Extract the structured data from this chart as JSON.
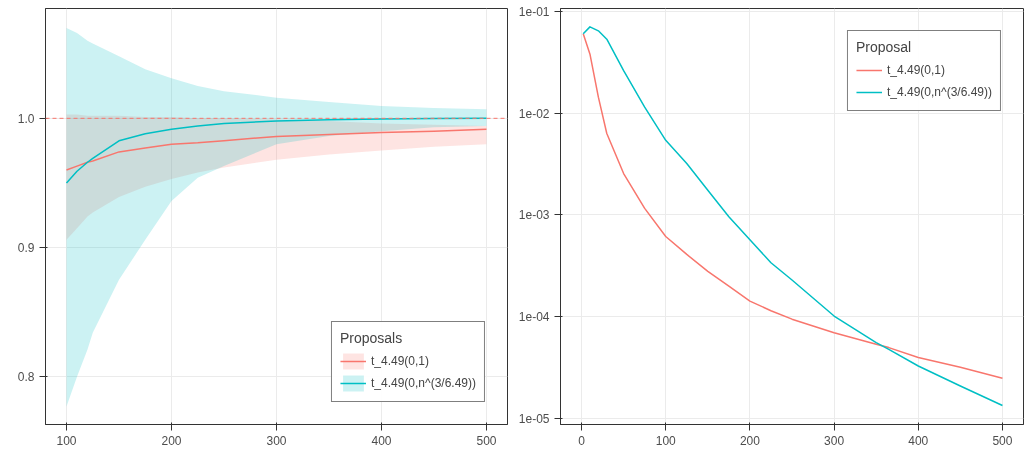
{
  "chart_data": [
    {
      "type": "line",
      "legend_title": "Proposals",
      "legend": "bottom right",
      "grid": true,
      "x": [
        100,
        110,
        120,
        125,
        150,
        175,
        200,
        225,
        250,
        300,
        350,
        400,
        450,
        500
      ],
      "xlim": [
        80,
        520
      ],
      "xticks": [
        100,
        200,
        300,
        400,
        500
      ],
      "ylim": [
        0.763,
        1.085
      ],
      "yticks": [
        {
          "value": 0.8,
          "label": "0.8"
        },
        {
          "value": 0.9,
          "label": "0.9"
        },
        {
          "value": 1.0,
          "label": "1.0"
        }
      ],
      "ref_lines": [
        {
          "axis": "y",
          "value": 1.0,
          "label": null,
          "color": "#f8766d",
          "line_style": "dashed"
        }
      ],
      "series": [
        {
          "name": "t_4.49(0,1)",
          "color": "#f8766d",
          "values": [
            0.96,
            0.963,
            0.966,
            0.967,
            0.974,
            0.977,
            0.98,
            0.981,
            0.9826,
            0.986,
            0.9875,
            0.989,
            0.99,
            0.9915
          ],
          "lower": [
            0.906,
            0.915,
            0.924,
            0.927,
            0.939,
            0.947,
            0.953,
            0.958,
            0.962,
            0.968,
            0.972,
            0.975,
            0.978,
            0.98
          ],
          "upper": [
            1.003,
            1.003,
            1.002,
            1.002,
            1.002,
            1.001,
            1.001,
            1.0,
            1.0,
            0.999,
            0.998,
            0.996,
            0.995,
            0.994
          ]
        },
        {
          "name": "t_4.49(0,n^(3/6.49))",
          "color": "#00bfc4",
          "values": [
            0.95,
            0.959,
            0.966,
            0.969,
            0.9826,
            0.988,
            0.9915,
            0.994,
            0.9959,
            0.998,
            0.9988,
            0.9995,
            0.9998,
            1.0
          ],
          "lower": [
            0.777,
            0.8,
            0.821,
            0.834,
            0.875,
            0.906,
            0.936,
            0.954,
            0.963,
            0.98,
            0.9864,
            0.99,
            0.993,
            0.994
          ],
          "upper": [
            1.07,
            1.066,
            1.06,
            1.058,
            1.048,
            1.038,
            1.031,
            1.025,
            1.021,
            1.016,
            1.0126,
            1.0095,
            1.008,
            1.007
          ]
        }
      ]
    },
    {
      "type": "line",
      "legend_title": "Proposal",
      "legend": "top right",
      "grid": true,
      "log": "y",
      "x": [
        2,
        10,
        20,
        30,
        50,
        75,
        100,
        125,
        150,
        175,
        200,
        225,
        250,
        300,
        350,
        365,
        400,
        450,
        500
      ],
      "xlim": [
        -25,
        525
      ],
      "xticks": [
        0,
        100,
        200,
        300,
        400,
        500
      ],
      "ylim": [
        8.8e-06,
        0.106
      ],
      "yticks": [
        {
          "value": 1e-05,
          "label": "1e-05"
        },
        {
          "value": 0.0001,
          "label": "1e-04"
        },
        {
          "value": 0.001,
          "label": "1e-03"
        },
        {
          "value": 0.01,
          "label": "1e-02"
        },
        {
          "value": 0.1,
          "label": "1e-01"
        }
      ],
      "series": [
        {
          "name": "t_4.49(0,1)",
          "color": "#f8766d",
          "values": [
            0.06,
            0.0378,
            0.0143,
            0.0063,
            0.00255,
            0.00116,
            0.000615,
            0.00041,
            0.00028,
            0.0002,
            0.000143,
            0.000115,
            9.5e-05,
            7e-05,
            5.4e-05,
            5e-05,
            4e-05,
            3.2e-05,
            2.5e-05
          ]
        },
        {
          "name": "t_4.49(0,n^(3/6.49))",
          "color": "#00bfc4",
          "values": [
            0.06,
            0.07,
            0.064,
            0.053,
            0.026,
            0.0114,
            0.0054,
            0.0032,
            0.00175,
            0.00096,
            0.00057,
            0.00034,
            0.00023,
            0.000102,
            5.6e-05,
            4.8e-05,
            3.3e-05,
            2.1e-05,
            1.35e-05
          ]
        }
      ]
    }
  ]
}
